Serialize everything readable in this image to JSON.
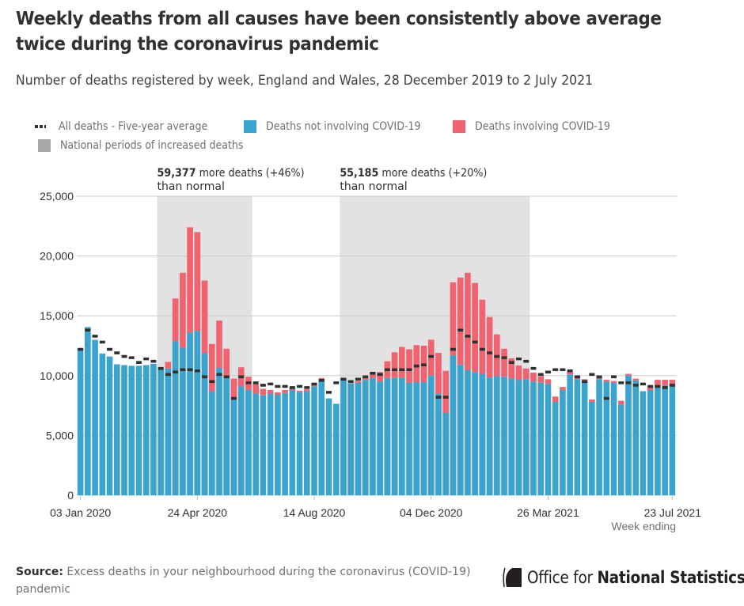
{
  "title": "Weekly deaths from all causes have been consistently above average twice during the coronavirus pandemic",
  "subtitle": "Number of deaths registered by week, England and Wales, 28 December 2019 to 2 July 2021",
  "legend": {
    "average": "All deaths - Five-year average",
    "non_covid": "Deaths not involving COVID-19",
    "covid": "Deaths involving COVID-19",
    "periods": "National periods of increased deaths"
  },
  "colors": {
    "non_covid": "#3ba4ce",
    "covid": "#f0636f",
    "average": "#323132",
    "period_shade": "#e2e2e3",
    "grid": "#cccccc"
  },
  "annotations": [
    {
      "bold": "59,377",
      "text": " more deaths (+46%)",
      "line2": "than normal"
    },
    {
      "bold": "55,185",
      "text": " more deaths (+20%)",
      "line2": "than normal"
    }
  ],
  "source": {
    "label": "Source:",
    "text": " Excess deaths in your neighbourhood during the coronavirus (COVID-19) pandemic"
  },
  "logo": {
    "light": "Office for ",
    "bold": "National Statistics"
  },
  "chart_data": {
    "type": "bar",
    "stacked": true,
    "title": "Weekly deaths from all causes have been consistently above average twice during the coronavirus pandemic",
    "subtitle": "Number of deaths registered by week, England and Wales, 28 December 2019 to 2 July 2021",
    "xlabel": "Week ending",
    "ylabel": "",
    "ylim": [
      0,
      25000
    ],
    "yticks": [
      0,
      5000,
      10000,
      15000,
      20000,
      25000
    ],
    "ytick_labels": [
      "0",
      "5,000",
      "10,000",
      "15,000",
      "20,000",
      "25,000"
    ],
    "xtick_labels": [
      "03 Jan 2020",
      "24 Apr 2020",
      "14 Aug 2020",
      "04 Dec 2020",
      "26 Mar 2021",
      "23 Jul 2021"
    ],
    "xtick_week_index": [
      0,
      16,
      32,
      48,
      64,
      81
    ],
    "grid": true,
    "legend_position": "top-left",
    "shaded_periods": [
      {
        "label": "National periods of increased deaths",
        "start_week_index": 11,
        "end_week_index": 23,
        "annotation": "59,377 more deaths (+46%) than normal"
      },
      {
        "label": "National periods of increased deaths",
        "start_week_index": 36,
        "end_week_index": 61,
        "annotation": "55,185 more deaths (+20%) than normal"
      }
    ],
    "series": [
      {
        "name": "Deaths not involving COVID-19",
        "values": [
          12250,
          14060,
          12990,
          11850,
          11600,
          10950,
          10880,
          10820,
          10820,
          10880,
          10990,
          10600,
          10600,
          12900,
          12350,
          13600,
          13750,
          11900,
          8700,
          10650,
          9800,
          8000,
          9100,
          8800,
          8500,
          8350,
          8500,
          8400,
          8550,
          8800,
          8650,
          8700,
          9100,
          9600,
          8100,
          7650,
          9800,
          9350,
          9400,
          9650,
          9800,
          9500,
          9800,
          9800,
          9800,
          9400,
          9450,
          9450,
          10000,
          8500,
          6900,
          11700,
          10900,
          10450,
          10300,
          10150,
          9850,
          9950,
          9900,
          9750,
          9650,
          9700,
          9500,
          9400,
          9300,
          7800,
          8800,
          10100,
          9700,
          9500,
          7800,
          9700,
          9500,
          9400,
          7600,
          10000,
          9600,
          8700,
          8800,
          9200,
          9200,
          9200
        ],
        "color": "#3ba4ce"
      },
      {
        "name": "Deaths involving COVID-19",
        "values": [
          0,
          0,
          0,
          0,
          0,
          0,
          0,
          0,
          0,
          0,
          0,
          0,
          550,
          3550,
          6250,
          8800,
          8250,
          6050,
          3950,
          3950,
          2450,
          1750,
          1600,
          1100,
          800,
          550,
          300,
          200,
          250,
          150,
          100,
          150,
          150,
          200,
          0,
          0,
          0,
          0,
          150,
          250,
          500,
          800,
          1400,
          2150,
          2600,
          2800,
          3100,
          3050,
          3000,
          3400,
          3500,
          6100,
          7300,
          8150,
          7450,
          6200,
          5050,
          3500,
          2350,
          1700,
          1200,
          900,
          750,
          550,
          400,
          450,
          250,
          200,
          300,
          200,
          200,
          200,
          150,
          150,
          300,
          150,
          150,
          0,
          200,
          450,
          450,
          450
        ],
        "color": "#f0636f"
      },
      {
        "name": "All deaths - Five-year average",
        "values": [
          12200,
          13800,
          13300,
          12800,
          12200,
          11900,
          11600,
          11500,
          11100,
          11400,
          11200,
          10600,
          10100,
          10300,
          10500,
          10500,
          10400,
          9900,
          9500,
          10100,
          9900,
          8100,
          9900,
          9400,
          9400,
          9200,
          9300,
          9100,
          9100,
          9000,
          9100,
          9000,
          9300,
          9600,
          8600,
          9400,
          9700,
          9500,
          9700,
          9900,
          10200,
          10100,
          10500,
          10500,
          10500,
          10500,
          10800,
          10900,
          11600,
          8200,
          8200,
          12200,
          13800,
          13300,
          12800,
          12200,
          11900,
          11600,
          11500,
          11100,
          11400,
          11200,
          10600,
          10100,
          10300,
          10500,
          10500,
          10400,
          9900,
          9500,
          10100,
          9900,
          8100,
          9900,
          9400,
          9400,
          9200,
          9300,
          9100,
          9100,
          9000,
          9200
        ],
        "color": "#323132",
        "style": "dash-marker"
      }
    ]
  }
}
